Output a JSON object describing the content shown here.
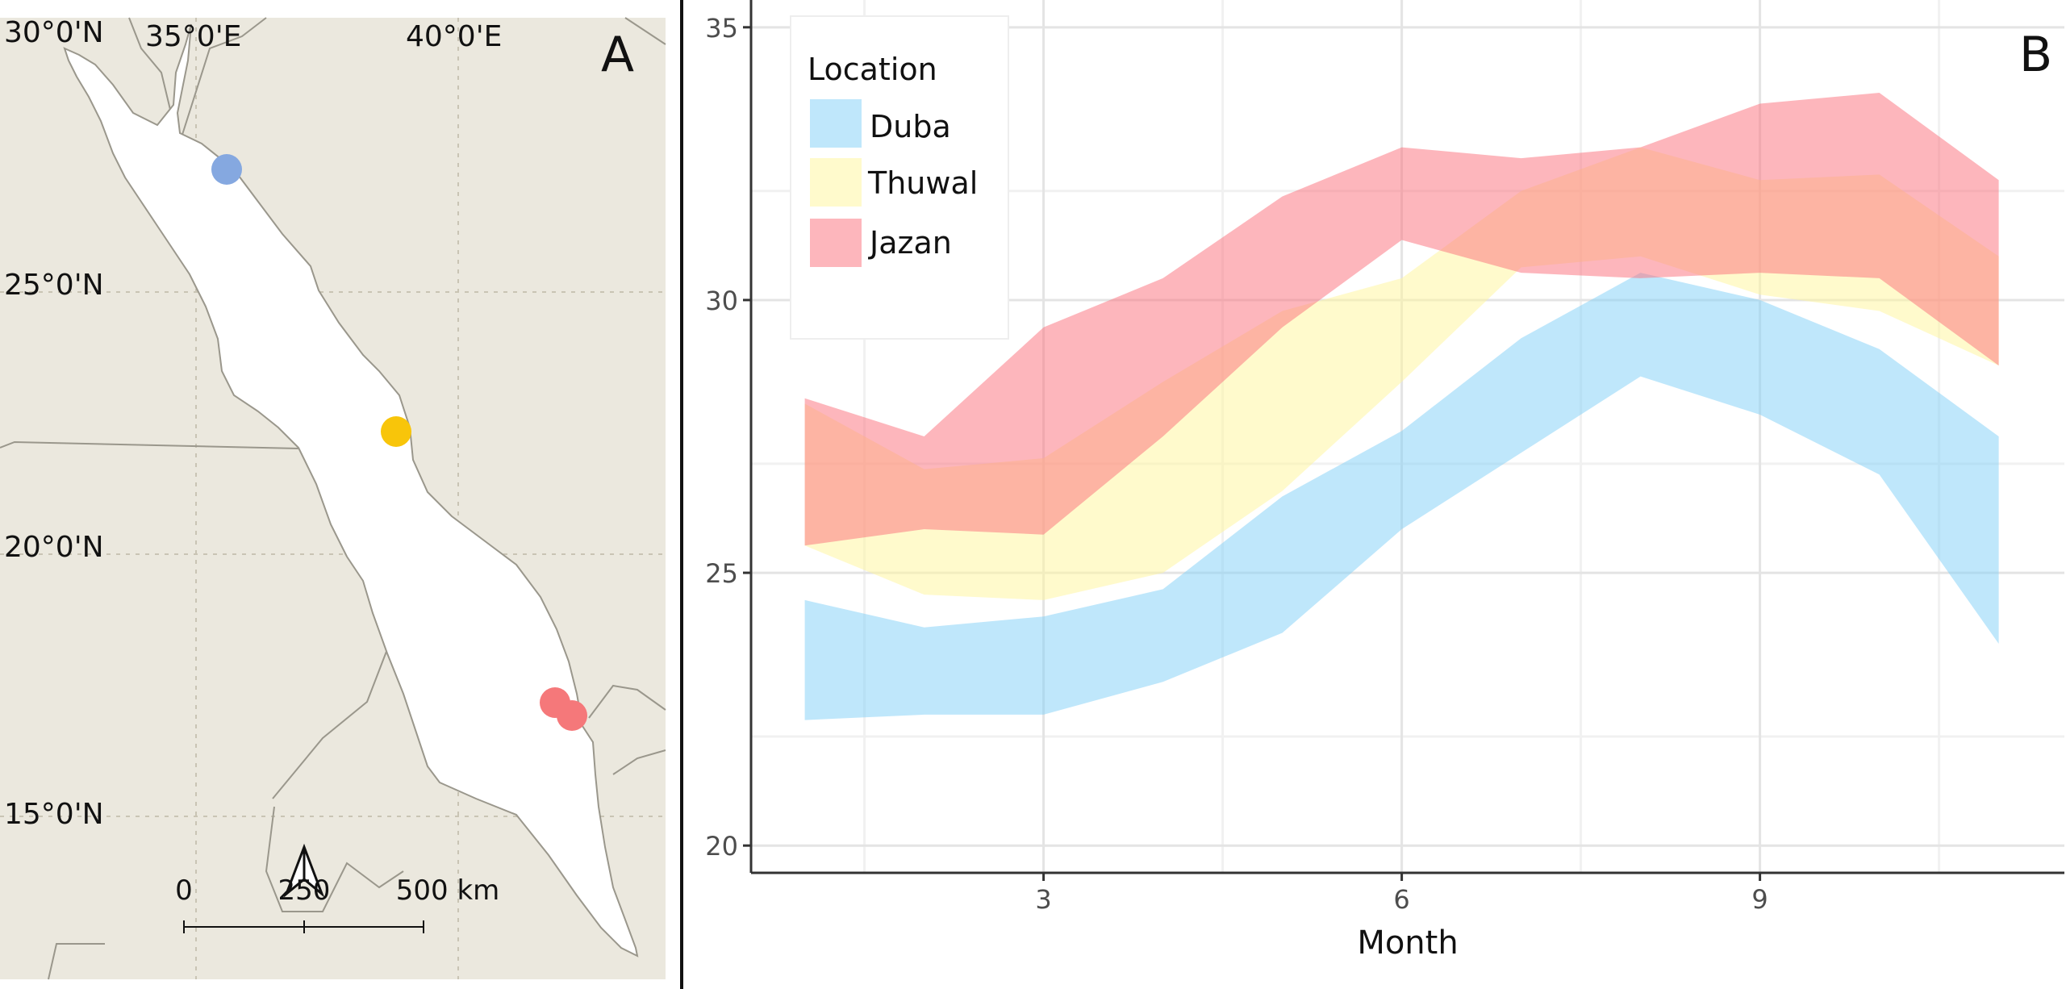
{
  "colors": {
    "land": "#ebe8de",
    "sea": "#ffffff",
    "border": "#9a978c",
    "grid_map": "#c9c4b4",
    "duba": "#85a8e0",
    "thuwal": "#f8c50a",
    "jazan": "#f5787a",
    "band_duba": "#7fd0f7",
    "band_thuwal": "#fff59a",
    "band_jazan": "#fb6e7a"
  },
  "map": {
    "panel_label": "A",
    "lat_labels": [
      "30°0'N",
      "25°0'N",
      "20°0'N",
      "15°0'N"
    ],
    "lon_labels": [
      "35°0'E",
      "40°0'E"
    ],
    "scale_labels": [
      "0",
      "250",
      "500 km"
    ],
    "north_arrow_icon": "north-arrow-icon",
    "sites": [
      {
        "name": "Duba",
        "series": "duba"
      },
      {
        "name": "Thuwal",
        "series": "thuwal"
      },
      {
        "name": "Jazan 1",
        "series": "jazan"
      },
      {
        "name": "Jazan 2",
        "series": "jazan"
      }
    ]
  },
  "chart_data": {
    "type": "area",
    "panel_label": "B",
    "xlabel": "Month",
    "ylabel": "",
    "xlim": [
      0.55,
      11.55
    ],
    "ylim": [
      19.5,
      35.5
    ],
    "x_ticks": [
      3,
      6,
      9
    ],
    "y_ticks": [
      20,
      25,
      30,
      35
    ],
    "x": [
      1,
      2,
      3,
      4,
      5,
      6,
      7,
      8,
      9,
      10,
      11
    ],
    "legend": {
      "title": "Location",
      "position": "top-left",
      "entries": [
        "Duba",
        "Thuwal",
        "Jazan"
      ]
    },
    "series": [
      {
        "name": "Duba",
        "color_key": "band_duba",
        "lower": [
          22.3,
          22.4,
          22.4,
          23.0,
          23.9,
          25.8,
          27.2,
          28.6,
          27.9,
          26.8,
          23.7
        ],
        "upper": [
          24.5,
          24.0,
          24.2,
          24.7,
          26.4,
          27.6,
          29.3,
          30.5,
          30.0,
          29.1,
          27.5
        ]
      },
      {
        "name": "Thuwal",
        "color_key": "band_thuwal",
        "lower": [
          25.5,
          24.6,
          24.5,
          25.0,
          26.5,
          28.5,
          30.6,
          30.8,
          30.1,
          29.8,
          28.8
        ],
        "upper": [
          28.1,
          26.9,
          27.1,
          28.5,
          29.8,
          30.4,
          32.0,
          32.8,
          32.2,
          32.3,
          30.8
        ]
      },
      {
        "name": "Jazan",
        "color_key": "band_jazan",
        "lower": [
          25.5,
          25.8,
          25.7,
          27.5,
          29.5,
          31.1,
          30.5,
          30.4,
          30.5,
          30.4,
          28.8
        ],
        "upper": [
          28.2,
          27.5,
          29.5,
          30.4,
          31.9,
          32.8,
          32.6,
          32.8,
          33.6,
          33.8,
          32.2
        ]
      }
    ]
  }
}
